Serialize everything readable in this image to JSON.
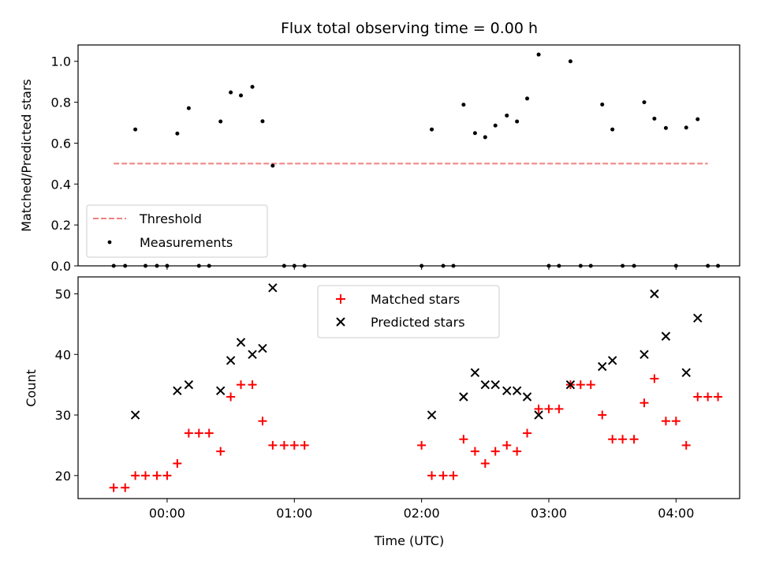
{
  "chart_data": [
    {
      "type": "scatter",
      "title": "Flux total observing time = 0.00 h",
      "xlabel": "",
      "ylabel": "Matched/Predicted stars",
      "ylim": [
        0,
        1.08
      ],
      "yticks": [
        "0.0",
        "0.2",
        "0.4",
        "0.6",
        "0.8",
        "1.0"
      ],
      "ytick_values": [
        0,
        0.2,
        0.4,
        0.6,
        0.8,
        1.0
      ],
      "legend_position": "lower-left",
      "threshold": {
        "name": "Threshold",
        "value": 0.5,
        "x_start": -0.42,
        "x_end": 4.25,
        "color": "#f08080"
      },
      "series": [
        {
          "name": "Measurements",
          "color": "#000000",
          "points": [
            [
              -0.42,
              0
            ],
            [
              -0.33,
              0
            ],
            [
              -0.25,
              0.667
            ],
            [
              -0.17,
              0
            ],
            [
              -0.08,
              0
            ],
            [
              0.0,
              0
            ],
            [
              0.08,
              0.647
            ],
            [
              0.17,
              0.771
            ],
            [
              0.25,
              0
            ],
            [
              0.33,
              0
            ],
            [
              0.42,
              0.706
            ],
            [
              0.5,
              0.848
            ],
            [
              0.58,
              0.833
            ],
            [
              0.67,
              0.875
            ],
            [
              0.75,
              0.707
            ],
            [
              0.83,
              0.49
            ],
            [
              0.92,
              0
            ],
            [
              1.0,
              0
            ],
            [
              1.08,
              0
            ],
            [
              2.0,
              0
            ],
            [
              2.08,
              0.667
            ],
            [
              2.17,
              0
            ],
            [
              2.25,
              0
            ],
            [
              2.33,
              0.788
            ],
            [
              2.42,
              0.649
            ],
            [
              2.5,
              0.629
            ],
            [
              2.58,
              0.686
            ],
            [
              2.67,
              0.735
            ],
            [
              2.75,
              0.706
            ],
            [
              2.83,
              0.818
            ],
            [
              2.92,
              1.033
            ],
            [
              3.0,
              0
            ],
            [
              3.08,
              0
            ],
            [
              3.17,
              1.0
            ],
            [
              3.25,
              0
            ],
            [
              3.33,
              0
            ],
            [
              3.42,
              0.789
            ],
            [
              3.5,
              0.667
            ],
            [
              3.58,
              0
            ],
            [
              3.67,
              0
            ],
            [
              3.75,
              0.8
            ],
            [
              3.83,
              0.72
            ],
            [
              3.92,
              0.674
            ],
            [
              4.0,
              0
            ],
            [
              4.08,
              0.676
            ],
            [
              4.17,
              0.717
            ],
            [
              4.25,
              0
            ],
            [
              4.33,
              0
            ]
          ]
        }
      ]
    },
    {
      "type": "scatter",
      "title": "",
      "xlabel": "Time (UTC)",
      "ylabel": "Count",
      "ylim": [
        16.2,
        52.8
      ],
      "yticks": [
        "20",
        "30",
        "40",
        "50"
      ],
      "ytick_values": [
        20,
        30,
        40,
        50
      ],
      "xlim": [
        -0.7,
        4.5
      ],
      "xticks": [
        "00:00",
        "01:00",
        "02:00",
        "03:00",
        "04:00"
      ],
      "xtick_values": [
        0,
        1,
        2,
        3,
        4
      ],
      "legend_position": "upper-center",
      "series": [
        {
          "name": "Matched stars",
          "color": "#ff0000",
          "marker": "plus",
          "points": [
            [
              -0.42,
              18
            ],
            [
              -0.33,
              18
            ],
            [
              -0.25,
              20
            ],
            [
              -0.17,
              20
            ],
            [
              -0.08,
              20
            ],
            [
              0.0,
              20
            ],
            [
              0.08,
              22
            ],
            [
              0.17,
              27
            ],
            [
              0.25,
              27
            ],
            [
              0.33,
              27
            ],
            [
              0.42,
              24
            ],
            [
              0.5,
              33
            ],
            [
              0.58,
              35
            ],
            [
              0.67,
              35
            ],
            [
              0.75,
              29
            ],
            [
              0.83,
              25
            ],
            [
              0.92,
              25
            ],
            [
              1.0,
              25
            ],
            [
              1.08,
              25
            ],
            [
              2.0,
              25
            ],
            [
              2.08,
              20
            ],
            [
              2.17,
              20
            ],
            [
              2.25,
              20
            ],
            [
              2.33,
              26
            ],
            [
              2.42,
              24
            ],
            [
              2.5,
              22
            ],
            [
              2.58,
              24
            ],
            [
              2.67,
              25
            ],
            [
              2.75,
              24
            ],
            [
              2.83,
              27
            ],
            [
              2.92,
              31
            ],
            [
              3.0,
              31
            ],
            [
              3.08,
              31
            ],
            [
              3.17,
              35
            ],
            [
              3.25,
              35
            ],
            [
              3.33,
              35
            ],
            [
              3.42,
              30
            ],
            [
              3.5,
              26
            ],
            [
              3.58,
              26
            ],
            [
              3.67,
              26
            ],
            [
              3.75,
              32
            ],
            [
              3.83,
              36
            ],
            [
              3.92,
              29
            ],
            [
              4.0,
              29
            ],
            [
              4.08,
              25
            ],
            [
              4.17,
              33
            ],
            [
              4.25,
              33
            ],
            [
              4.33,
              33
            ]
          ]
        },
        {
          "name": "Predicted stars",
          "color": "#000000",
          "marker": "cross",
          "points": [
            [
              -0.25,
              30
            ],
            [
              0.08,
              34
            ],
            [
              0.17,
              35
            ],
            [
              0.42,
              34
            ],
            [
              0.5,
              39
            ],
            [
              0.58,
              42
            ],
            [
              0.67,
              40
            ],
            [
              0.75,
              41
            ],
            [
              0.83,
              51
            ],
            [
              2.08,
              30
            ],
            [
              2.33,
              33
            ],
            [
              2.42,
              37
            ],
            [
              2.5,
              35
            ],
            [
              2.58,
              35
            ],
            [
              2.67,
              34
            ],
            [
              2.75,
              34
            ],
            [
              2.83,
              33
            ],
            [
              2.92,
              30
            ],
            [
              3.17,
              35
            ],
            [
              3.42,
              38
            ],
            [
              3.5,
              39
            ],
            [
              3.75,
              40
            ],
            [
              3.83,
              50
            ],
            [
              3.92,
              43
            ],
            [
              4.08,
              37
            ],
            [
              4.17,
              46
            ]
          ]
        }
      ]
    }
  ]
}
